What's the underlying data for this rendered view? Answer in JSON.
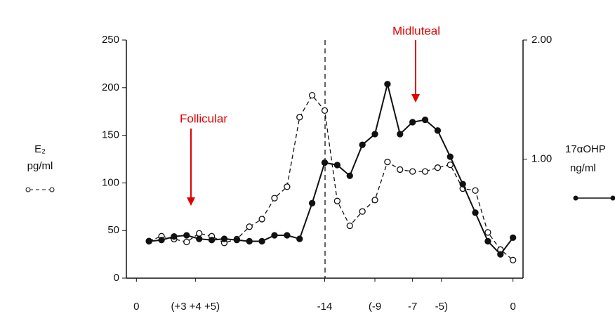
{
  "chart_data": {
    "type": "line",
    "ylabel": [
      "E₂",
      "pg/ml"
    ],
    "y2label": [
      "17αOHP",
      "ng/ml"
    ],
    "annotations": [
      "Follicular",
      "Midluteal"
    ],
    "x": [
      1,
      2,
      3,
      4,
      5,
      6,
      7,
      8,
      9,
      10,
      11,
      12,
      13,
      14,
      15,
      16,
      17,
      18,
      19,
      20,
      21,
      22,
      23,
      24,
      25,
      26,
      27,
      28,
      29,
      30
    ],
    "xlim": [
      -0.8,
      30.8
    ],
    "xticks": [
      {
        "value": 0,
        "label": "0"
      },
      {
        "value": 4.7,
        "label": "(+3 +4 +5)"
      },
      {
        "value": 15,
        "label": "-14"
      },
      {
        "value": 19,
        "label": "(-9"
      },
      {
        "value": 22,
        "label": "-7"
      },
      {
        "value": 24.3,
        "label": "-5)"
      },
      {
        "value": 30,
        "label": "0"
      }
    ],
    "ylim": [
      0,
      250
    ],
    "yticks": [
      0,
      50,
      100,
      150,
      200,
      250
    ],
    "y2lim": [
      0,
      2
    ],
    "y2ticks": [
      {
        "value": 1,
        "label": "1.00"
      },
      {
        "value": 2,
        "label": "2.00"
      }
    ],
    "series": [
      {
        "name": "E₂",
        "color": "#111",
        "dashed": true,
        "marker": "open",
        "values": [
          39,
          44,
          41,
          38,
          47,
          44,
          37,
          41,
          54,
          62,
          84,
          96,
          169,
          192,
          176,
          81,
          55,
          70,
          82,
          122,
          114,
          112,
          112,
          116,
          119,
          94,
          92,
          48,
          30,
          19
        ]
      },
      {
        "name": "17αOHP",
        "color": "#111",
        "dashed": false,
        "marker": "filled",
        "axis": "y2",
        "values": [
          0.31,
          0.32,
          0.35,
          0.36,
          0.33,
          0.32,
          0.33,
          0.32,
          0.31,
          0.31,
          0.36,
          0.36,
          0.33,
          0.63,
          0.97,
          0.95,
          0.86,
          1.12,
          1.21,
          1.63,
          1.21,
          1.31,
          1.33,
          1.24,
          1.02,
          0.79,
          0.55,
          0.31,
          0.2,
          0.34
        ]
      }
    ]
  }
}
